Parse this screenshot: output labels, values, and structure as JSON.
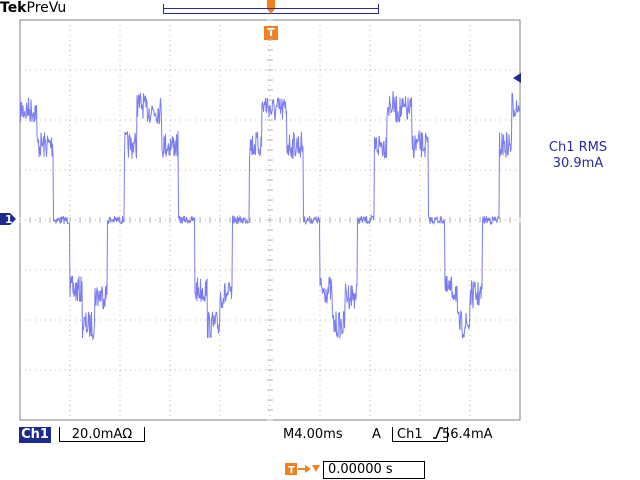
{
  "header": {
    "brand": "Tek",
    "mode": "PreVu"
  },
  "markers": {
    "trigger_top": "T",
    "channel": "1",
    "trigger_offset_icon": "trigger-offset-icon"
  },
  "measurement": {
    "label": "Ch1 RMS",
    "value": "30.9mA"
  },
  "status_bar": {
    "channel": "Ch1",
    "channel_scale": "20.0mAΩ",
    "timebase": "M4.00ms",
    "trigger_mode": "A",
    "trigger_source": "Ch1",
    "trigger_slope_icon": "rising-edge-icon",
    "trigger_level": "56.4mA"
  },
  "trigger_offset": {
    "value": "0.00000 s"
  },
  "colors": {
    "trace": "#7a7cf0",
    "grid": "#b8b8b8",
    "channel": "#1e2b8e",
    "trigger": "#f08020"
  }
}
